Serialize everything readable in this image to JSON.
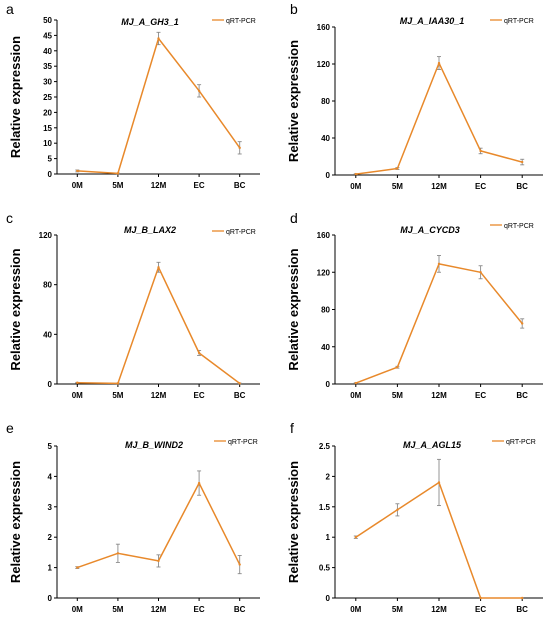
{
  "chart_data": [
    {
      "letter": "a",
      "type": "line",
      "title": "MJ_A_GH3_1",
      "ylabel": "Relative expression",
      "xlabel": "",
      "legend": "qRT-PCR",
      "legend_position": "top-right",
      "categories": [
        "0M",
        "5M",
        "12M",
        "EC",
        "BC"
      ],
      "values": [
        1,
        0.2,
        44,
        27,
        8.5
      ],
      "errors": [
        0.3,
        0.1,
        2,
        2,
        2
      ],
      "ylim": [
        0,
        50
      ],
      "yticks": [
        0,
        5,
        10,
        15,
        20,
        25,
        30,
        35,
        40,
        45,
        50
      ]
    },
    {
      "letter": "b",
      "type": "line",
      "title": "MJ_A_IAA30_1",
      "ylabel": "Relative expression",
      "xlabel": "",
      "legend": "qRT-PCR",
      "legend_position": "top-right",
      "categories": [
        "0M",
        "5M",
        "12M",
        "EC",
        "BC"
      ],
      "values": [
        1,
        7,
        121,
        26,
        14
      ],
      "errors": [
        0.3,
        1,
        7,
        3,
        3
      ],
      "ylim": [
        0,
        160
      ],
      "yticks": [
        0,
        40,
        80,
        120,
        160
      ]
    },
    {
      "letter": "c",
      "type": "line",
      "title": "MJ_B_LAX2",
      "ylabel": "Relative expression",
      "xlabel": "",
      "legend": "qRT-PCR",
      "legend_position": "top-right",
      "categories": [
        "0M",
        "5M",
        "12M",
        "EC",
        "BC"
      ],
      "values": [
        1,
        0.5,
        94,
        25,
        0.5
      ],
      "errors": [
        0.3,
        0.2,
        4,
        2,
        0.2
      ],
      "ylim": [
        0,
        120
      ],
      "yticks": [
        0,
        40,
        80,
        120
      ]
    },
    {
      "letter": "d",
      "type": "line",
      "title": "MJ_A_CYCD3",
      "ylabel": "Relative expression",
      "xlabel": "",
      "legend": "qRT-PCR",
      "legend_position": "top-right",
      "categories": [
        "0M",
        "5M",
        "12M",
        "EC",
        "BC"
      ],
      "values": [
        1,
        18,
        129,
        120,
        65
      ],
      "errors": [
        0.3,
        1,
        9,
        7,
        5
      ],
      "ylim": [
        0,
        160
      ],
      "yticks": [
        0,
        40,
        80,
        120,
        160
      ]
    },
    {
      "letter": "e",
      "type": "line",
      "title": "MJ_B_WIND2",
      "ylabel": "Relative expression",
      "xlabel": "",
      "legend": "qRT-PCR",
      "legend_position": "top-right",
      "categories": [
        "0M",
        "5M",
        "12M",
        "EC",
        "BC"
      ],
      "values": [
        1,
        1.47,
        1.22,
        3.78,
        1.1
      ],
      "errors": [
        0.03,
        0.3,
        0.2,
        0.4,
        0.3
      ],
      "ylim": [
        0,
        5
      ],
      "yticks": [
        0,
        1,
        2,
        3,
        4,
        5
      ]
    },
    {
      "letter": "f",
      "type": "line",
      "title": "MJ_A_AGL15",
      "ylabel": "Relative expression",
      "xlabel": "",
      "legend": "qRT-PCR",
      "legend_position": "top-right",
      "categories": [
        "0M",
        "5M",
        "12M",
        "EC",
        "BC"
      ],
      "values": [
        1,
        1.45,
        1.9,
        0,
        0
      ],
      "errors": [
        0.02,
        0.1,
        0.38,
        0,
        0
      ],
      "ylim": [
        0,
        2.5
      ],
      "yticks": [
        0,
        0.5,
        1,
        1.5,
        2,
        2.5
      ]
    }
  ],
  "colors": {
    "series": "#E8892B",
    "axis": "#000000",
    "errorbar": "#8a8a8a"
  }
}
